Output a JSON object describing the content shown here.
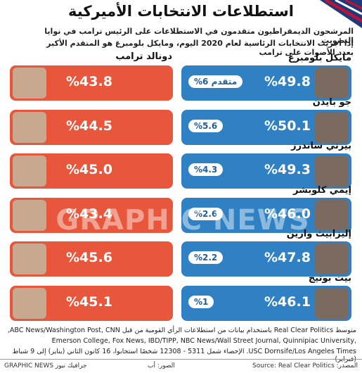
{
  "header": {
    "title": "استطلاعات الانتخابات الأميركية",
    "subtitle_lines": [
      "المرشحون الديمقراطيون متقدمون في الاستطلاعات على الرئيس ترامب في نوايا التصويت",
      "إذا أجريت الانتخابات الرئاسية لعام 2020 اليوم، ومايكل بلومبرغ هو المتقدم الأكبر بعدد الأصوات على ترامب"
    ]
  },
  "trump_name": "دونالد ترامب",
  "rows": [
    {
      "candidate": "مايكل بلومبرغ",
      "candidate_value": "%49.8",
      "lead": "متقدم 6%",
      "trump_value": "%43.8"
    },
    {
      "candidate": "جو بايدن",
      "candidate_value": "%50.1",
      "lead": "%5.6",
      "trump_value": "%44.5"
    },
    {
      "candidate": "بيرني ساندرز",
      "candidate_value": "%49.3",
      "lead": "%4.3",
      "trump_value": "%45.0"
    },
    {
      "candidate": "إيمي كلوبشر",
      "candidate_value": "%46.0",
      "lead": "%2.6",
      "trump_value": "%43.4"
    },
    {
      "candidate": "إليزابيث وارين",
      "candidate_value": "%47.8",
      "lead": "%2.2",
      "trump_value": "%45.6"
    },
    {
      "candidate": "بيت بوتيج",
      "candidate_value": "%46.1",
      "lead": "%1",
      "trump_value": "%45.1"
    }
  ],
  "watermark": "GRAPHIC NEWS",
  "footnote_lines": [
    "متوسط Real Clear Politics باستخدام بيانات من استطلاعات الرأي القومية من قبل ABC News/Washington Post, CNN,",
    "Emerson College, Fox News, IBD/TIPP, NBC News/Wall Street Journal, Quinnipiac University,",
    "USC Dornsife/Los Angeles Times. الإحصاء شمل 5311 - 12308 شخصًا استجابوا، 16 كانون الثاني (يناير) إلى 9 شباط (فبراير)"
  ],
  "footer": {
    "brand": "GRAPHIC NEWS جرافيك نيوز",
    "photos": "الصور: أب",
    "source": "المصدر: Source: Real Clear Politics"
  }
}
